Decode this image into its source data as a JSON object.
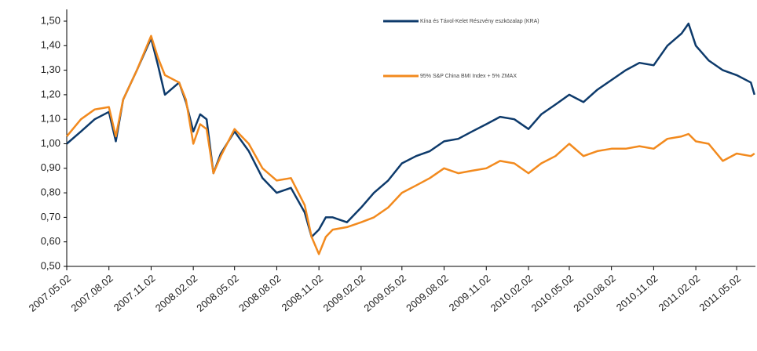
{
  "chart_data": {
    "type": "line",
    "x": [
      "2007.05.02",
      "2007.06.02",
      "2007.07.02",
      "2007.08.02",
      "2007.08.17",
      "2007.09.02",
      "2007.10.02",
      "2007.11.02",
      "2007.11.17",
      "2007.12.02",
      "2008.01.02",
      "2008.01.17",
      "2008.02.02",
      "2008.02.17",
      "2008.03.02",
      "2008.03.17",
      "2008.04.02",
      "2008.05.02",
      "2008.06.02",
      "2008.07.02",
      "2008.08.02",
      "2008.09.02",
      "2008.10.02",
      "2008.10.17",
      "2008.11.02",
      "2008.11.17",
      "2008.12.02",
      "2009.01.02",
      "2009.02.02",
      "2009.03.02",
      "2009.04.02",
      "2009.05.02",
      "2009.06.02",
      "2009.07.02",
      "2009.08.02",
      "2009.09.02",
      "2009.10.02",
      "2009.11.02",
      "2009.12.02",
      "2010.01.02",
      "2010.02.02",
      "2010.03.02",
      "2010.04.02",
      "2010.05.02",
      "2010.06.02",
      "2010.07.02",
      "2010.08.02",
      "2010.09.02",
      "2010.10.02",
      "2010.11.02",
      "2010.12.02",
      "2011.01.02",
      "2011.01.17",
      "2011.02.02",
      "2011.03.02",
      "2011.04.02",
      "2011.05.02",
      "2011.06.02",
      "2011.06.10"
    ],
    "series": [
      {
        "name": "Kína és Távol-Kelet Részvény eszközalap (KRA)",
        "color": "#0d3a6b",
        "values": [
          1.0,
          1.05,
          1.1,
          1.13,
          1.01,
          1.18,
          1.3,
          1.43,
          1.32,
          1.2,
          1.25,
          1.17,
          1.05,
          1.12,
          1.1,
          0.88,
          0.96,
          1.05,
          0.97,
          0.86,
          0.8,
          0.82,
          0.72,
          0.62,
          0.65,
          0.7,
          0.7,
          0.68,
          0.74,
          0.8,
          0.85,
          0.92,
          0.95,
          0.97,
          1.01,
          1.02,
          1.05,
          1.08,
          1.11,
          1.1,
          1.06,
          1.12,
          1.16,
          1.2,
          1.17,
          1.22,
          1.26,
          1.3,
          1.33,
          1.32,
          1.4,
          1.45,
          1.49,
          1.4,
          1.34,
          1.3,
          1.28,
          1.25,
          1.2
        ]
      },
      {
        "name": "95% S&P China BMI Index + 5% ZMAX",
        "color": "#f28a1e",
        "values": [
          1.03,
          1.1,
          1.14,
          1.15,
          1.03,
          1.18,
          1.3,
          1.44,
          1.35,
          1.28,
          1.25,
          1.18,
          1.0,
          1.08,
          1.06,
          0.88,
          0.95,
          1.06,
          1.0,
          0.9,
          0.85,
          0.86,
          0.75,
          0.62,
          0.55,
          0.62,
          0.65,
          0.66,
          0.68,
          0.7,
          0.74,
          0.8,
          0.83,
          0.86,
          0.9,
          0.88,
          0.89,
          0.9,
          0.93,
          0.92,
          0.88,
          0.92,
          0.95,
          1.0,
          0.95,
          0.97,
          0.98,
          0.98,
          0.99,
          0.98,
          1.02,
          1.03,
          1.04,
          1.01,
          1.0,
          0.93,
          0.96,
          0.95,
          0.96
        ]
      }
    ],
    "xlim": [
      "2007.05.02",
      "2011.06.12"
    ],
    "xticks": [
      "2007.05.02",
      "2007.08.02",
      "2007.11.02",
      "2008.02.02",
      "2008.05.02",
      "2008.08.02",
      "2008.11.02",
      "2009.02.02",
      "2009.05.02",
      "2009.08.02",
      "2009.11.02",
      "2010.02.02",
      "2010.05.02",
      "2010.08.02",
      "2010.11.02",
      "2011.02.02",
      "2011.05.02"
    ],
    "ylim": [
      0.5,
      1.5
    ],
    "yticks": [
      {
        "value": 0.5,
        "label": "0,50"
      },
      {
        "value": 0.6,
        "label": "0,60"
      },
      {
        "value": 0.7,
        "label": "0,70"
      },
      {
        "value": 0.8,
        "label": "0,80"
      },
      {
        "value": 0.9,
        "label": "0,90"
      },
      {
        "value": 1.0,
        "label": "1,00"
      },
      {
        "value": 1.1,
        "label": "1,10"
      },
      {
        "value": 1.2,
        "label": "1,20"
      },
      {
        "value": 1.3,
        "label": "1,30"
      },
      {
        "value": 1.4,
        "label": "1,40"
      },
      {
        "value": 1.5,
        "label": "1,50"
      }
    ],
    "grid": false,
    "legend": "top"
  }
}
